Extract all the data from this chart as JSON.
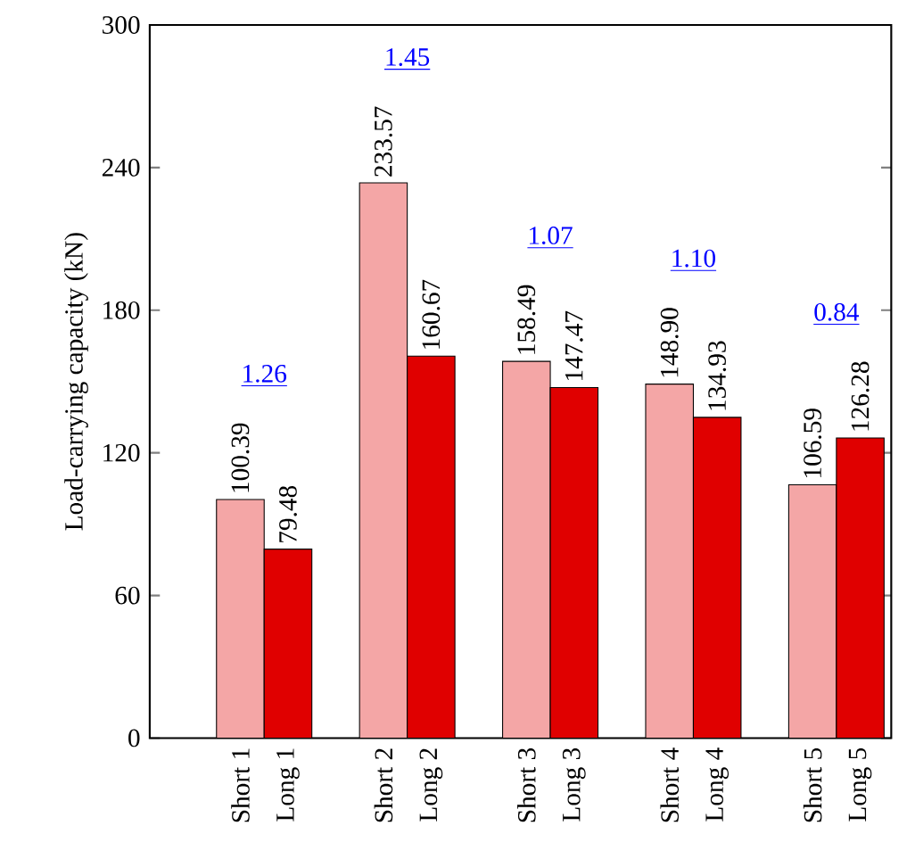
{
  "chart_data": {
    "type": "bar",
    "ylabel": "Load-carrying capacity (kN)",
    "categories": [
      "Short 1",
      "Long 1",
      "Short 2",
      "Long 2",
      "Short 3",
      "Long 3",
      "Short 4",
      "Long 4",
      "Short 5",
      "Long 5"
    ],
    "series": [
      {
        "color": "#f4a6a6",
        "values": [
          100.39,
          null,
          233.57,
          null,
          158.49,
          null,
          148.9,
          null,
          106.59,
          null
        ],
        "value_labels": [
          "100.39",
          null,
          "233.57",
          null,
          "158.49",
          null,
          "148.90",
          null,
          "106.59",
          null
        ]
      },
      {
        "color": "#e00000",
        "values": [
          null,
          79.48,
          null,
          160.67,
          null,
          147.47,
          null,
          134.93,
          null,
          126.28
        ],
        "value_labels": [
          null,
          "79.48",
          null,
          "160.67",
          null,
          "147.47",
          null,
          "134.93",
          null,
          "126.28"
        ]
      }
    ],
    "annotations": [
      "1.26",
      "1.45",
      "1.07",
      "1.10",
      "0.84"
    ],
    "ylim": [
      0,
      300
    ],
    "yticks": [
      0,
      60,
      120,
      180,
      240,
      300
    ],
    "grid": false
  }
}
